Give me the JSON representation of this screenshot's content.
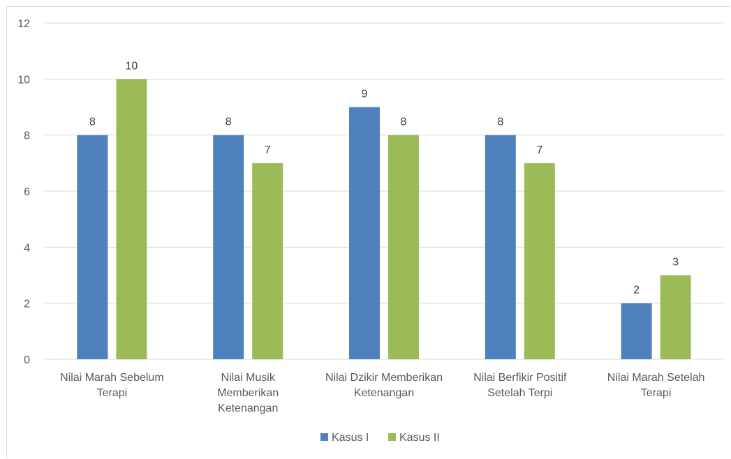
{
  "chart_data": {
    "type": "bar",
    "title": "",
    "xlabel": "",
    "ylabel": "",
    "ylim": [
      0,
      12
    ],
    "yticks": [
      0,
      2,
      4,
      6,
      8,
      10,
      12
    ],
    "grid": true,
    "legend_position": "bottom",
    "categories": [
      [
        "Nilai Marah Sebelum",
        "Terapi"
      ],
      [
        "Nilai Musik",
        "Memberikan",
        "Ketenangan"
      ],
      [
        "Nilai Dzikir Memberikan",
        "Ketenangan"
      ],
      [
        "Nilai Berfikir Positif",
        "Setelah Terpi"
      ],
      [
        "Nilai Marah Setelah",
        "Terapi"
      ]
    ],
    "series": [
      {
        "name": "Kasus I",
        "color": "#4f81bd",
        "values": [
          8,
          8,
          9,
          8,
          2
        ]
      },
      {
        "name": "Kasus II",
        "color": "#9bbb59",
        "values": [
          10,
          7,
          8,
          7,
          3
        ]
      }
    ]
  }
}
